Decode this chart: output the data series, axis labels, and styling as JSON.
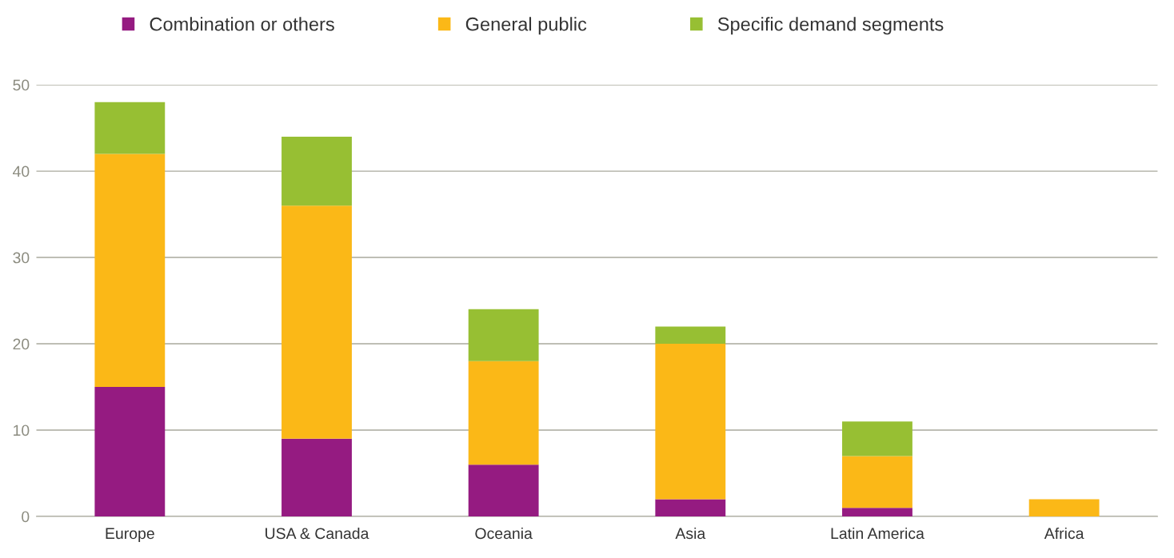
{
  "chart_data": {
    "type": "bar",
    "stacked": true,
    "categories": [
      "Europe",
      "USA & Canada",
      "Oceania",
      "Asia",
      "Latin America",
      "Africa"
    ],
    "series": [
      {
        "name": "Combination or others",
        "color": "#951b81",
        "values": [
          15,
          9,
          6,
          2,
          1,
          0
        ]
      },
      {
        "name": "General public",
        "color": "#fbb817",
        "values": [
          27,
          27,
          12,
          18,
          6,
          2
        ]
      },
      {
        "name": "Specific demand segments",
        "color": "#97bf33",
        "values": [
          6,
          8,
          6,
          2,
          4,
          0
        ]
      }
    ],
    "ylim": [
      0,
      50
    ],
    "yticks": [
      0,
      10,
      20,
      30,
      40,
      50
    ],
    "grid": "y",
    "legend": "top left"
  }
}
